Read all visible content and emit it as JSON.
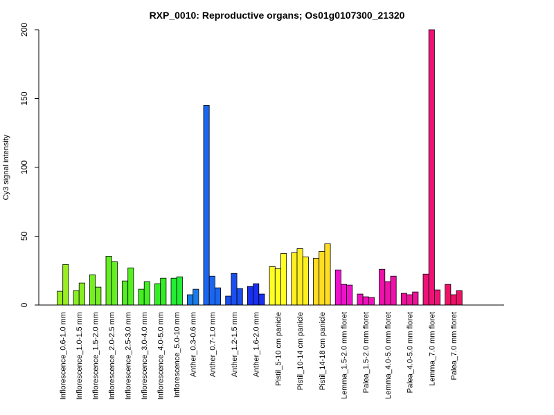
{
  "chart_data": {
    "type": "bar",
    "title": "RXP_0010: Reproductive organs; Os01g0107300_21320",
    "ylabel": "Cy3 signal intensity",
    "xlabel": "",
    "ylim": [
      0,
      200
    ],
    "yticks": [
      0,
      50,
      100,
      150,
      200
    ],
    "grid": false,
    "legend": "none",
    "groups": [
      {
        "label": "Inflorescence_0.6-1.0 mm",
        "color": "#99ee22",
        "values": [
          10,
          29.5
        ]
      },
      {
        "label": "Inflorescence_1.0-1.5 mm",
        "color": "#88ee22",
        "values": [
          10.5,
          16
        ]
      },
      {
        "label": "Inflorescence_1.5-2.0 mm",
        "color": "#77ee22",
        "values": [
          22,
          13
        ]
      },
      {
        "label": "Inflorescence_2.0-2.5 mm",
        "color": "#66ee22",
        "values": [
          35.5,
          31.5
        ]
      },
      {
        "label": "Inflorescence_2.5-3.0 mm",
        "color": "#55ee22",
        "values": [
          17.5,
          27
        ]
      },
      {
        "label": "Inflorescence_3.0-4.0 mm",
        "color": "#44ee22",
        "values": [
          11.5,
          17
        ]
      },
      {
        "label": "Inflorescence_4.0-5.0 mm",
        "color": "#33ee22",
        "values": [
          15.5,
          19.5
        ]
      },
      {
        "label": "Inflorescence_5.0-10 mm",
        "color": "#22ee33",
        "values": [
          19.5,
          20.5
        ]
      },
      {
        "label": "Anther_0.3-0.6 mm",
        "color": "#1a7be8",
        "values": [
          7.5,
          11.5
        ]
      },
      {
        "label": "Anther_0.7-1.0 mm",
        "color": "#1a66f0",
        "values": [
          145,
          21,
          12.5
        ]
      },
      {
        "label": "Anther_1.2-1.5 mm",
        "color": "#1a4ef0",
        "values": [
          6.5,
          23,
          12
        ]
      },
      {
        "label": "Anther_1.6-2.0 mm",
        "color": "#1a30f0",
        "values": [
          13.5,
          15.5,
          8
        ]
      },
      {
        "label": "Pistil_5-10 cm panicle",
        "color": "#ffff22",
        "values": [
          28,
          26.5,
          37.5
        ]
      },
      {
        "label": "Pistil_10-14 cm panicle",
        "color": "#ffee22",
        "values": [
          38,
          41,
          35
        ]
      },
      {
        "label": "Pistil_14-18 cm panicle",
        "color": "#ffdd22",
        "values": [
          34,
          39,
          44.5
        ]
      },
      {
        "label": "Lemma_1.5-2.0 mm floret",
        "color": "#ee11cc",
        "values": [
          25.5,
          15,
          14.5
        ]
      },
      {
        "label": "Palea_1.5-2.0 mm floret",
        "color": "#ee11bb",
        "values": [
          8,
          6,
          5.5
        ]
      },
      {
        "label": "Lemma_4.0-5.0 mm floret",
        "color": "#ee11aa",
        "values": [
          26,
          17,
          21
        ]
      },
      {
        "label": "Palea_4.0-5.0 mm floret",
        "color": "#ee1199",
        "values": [
          8.5,
          7.5,
          9.5
        ]
      },
      {
        "label": "Lemma_7.0 mm floret",
        "color": "#ee1177",
        "values": [
          22.5,
          200,
          11
        ]
      },
      {
        "label": "Palea_7.0 mm floret",
        "color": "#ee1166",
        "values": [
          15,
          7.5,
          10.5
        ]
      }
    ]
  }
}
